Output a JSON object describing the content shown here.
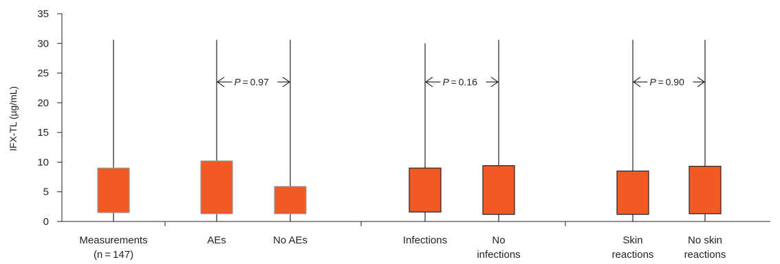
{
  "chart_data": {
    "type": "box",
    "ylabel": "IFX-TL (µg/mL)",
    "ylim": [
      0,
      35
    ],
    "yticks": [
      0,
      5,
      10,
      15,
      20,
      25,
      30,
      35
    ],
    "box_color": "#f15a24",
    "box_edge_colors": [
      "#999999",
      "#999999",
      "#999999",
      "#231f20",
      "#231f20",
      "#231f20",
      "#231f20"
    ],
    "groups": [
      {
        "label": [
          "Measurements",
          "(n = 147)"
        ],
        "whisker_low": 0,
        "q1": 1.5,
        "q3": 9.0,
        "whisker_high": 30.6
      },
      {
        "label": [
          "AEs"
        ],
        "whisker_low": 0,
        "q1": 1.3,
        "q3": 10.2,
        "whisker_high": 30.6
      },
      {
        "label": [
          "No AEs"
        ],
        "whisker_low": 0,
        "q1": 1.3,
        "q3": 5.9,
        "whisker_high": 30.6
      },
      {
        "label": [
          "Infections"
        ],
        "whisker_low": 0,
        "q1": 1.6,
        "q3": 9.0,
        "whisker_high": 30.0
      },
      {
        "label": [
          "No",
          "infections"
        ],
        "whisker_low": 0,
        "q1": 1.2,
        "q3": 9.4,
        "whisker_high": 30.6
      },
      {
        "label": [
          "Skin",
          "reactions"
        ],
        "whisker_low": 0,
        "q1": 1.2,
        "q3": 8.5,
        "whisker_high": 30.6
      },
      {
        "label": [
          "No skin",
          "reactions"
        ],
        "whisker_low": 0,
        "q1": 1.3,
        "q3": 9.3,
        "whisker_high": 30.6
      }
    ],
    "comparisons": [
      {
        "from": 1,
        "to": 2,
        "y": 23.5,
        "p_label": "P",
        "p_value": " = 0.97"
      },
      {
        "from": 3,
        "to": 4,
        "y": 23.5,
        "p_label": "P",
        "p_value": " = 0.16"
      },
      {
        "from": 5,
        "to": 6,
        "y": 23.5,
        "p_label": "P",
        "p_value": " = 0.90"
      }
    ]
  }
}
